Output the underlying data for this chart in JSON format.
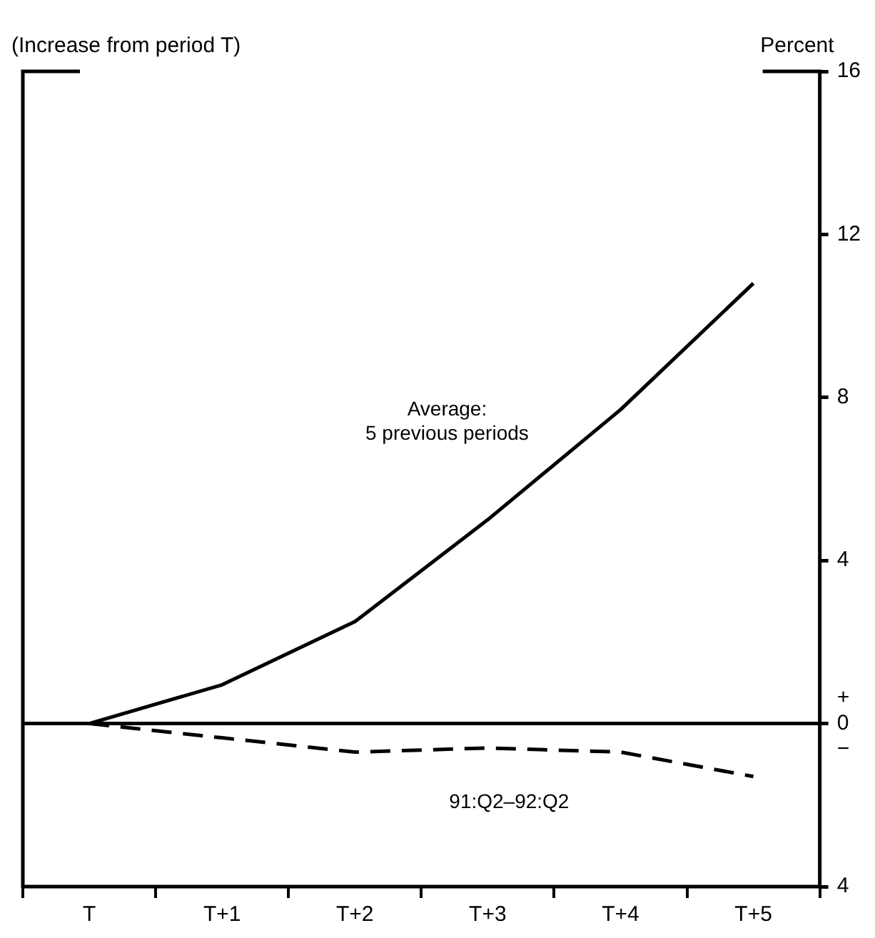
{
  "chart_data": {
    "type": "line",
    "title": "(Increase from period T)",
    "ylabel": "Percent",
    "categories": [
      "T",
      "T+1",
      "T+2",
      "T+3",
      "T+4",
      "T+5"
    ],
    "series": [
      {
        "name": "Average:\n5 previous periods",
        "color": "#000000",
        "values": [
          0,
          0.95,
          2.5,
          5.0,
          7.7,
          10.8
        ],
        "line_style": "solid"
      },
      {
        "name": "91:Q2–92:Q2",
        "color": "#000000",
        "values": [
          0,
          -0.35,
          -0.7,
          -0.6,
          -0.7,
          -1.3
        ],
        "line_style": "dashed"
      }
    ],
    "ylim": [
      -4,
      16
    ],
    "yticks": [
      {
        "value": -4,
        "label": "4"
      },
      {
        "value": 0,
        "label": "+ 0 −"
      },
      4,
      8,
      12,
      16
    ],
    "ref_lines": [
      {
        "axis": "y",
        "value": 0
      }
    ],
    "grid": false,
    "legend": false,
    "marker": "none"
  }
}
